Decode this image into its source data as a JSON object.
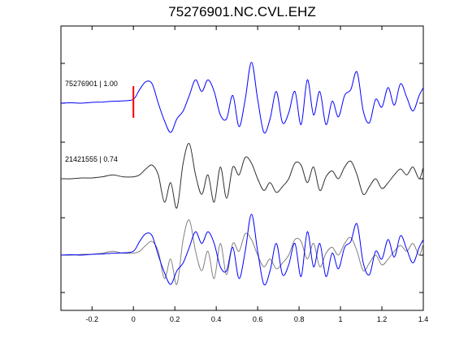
{
  "chart_data": {
    "type": "line",
    "title": "75276901.NC.CVL.EHZ",
    "xlabel": "",
    "ylabel": "",
    "xlim": [
      -0.35,
      1.4
    ],
    "x_ticks": [
      "-0.2",
      "0",
      "0.2",
      "0.4",
      "0.6",
      "0.8",
      "1",
      "1.2",
      "1.4"
    ],
    "x_tick_values": [
      -0.2,
      0,
      0.2,
      0.4,
      0.6,
      0.8,
      1.0,
      1.2,
      1.4
    ],
    "grid": false,
    "colors": {
      "blue": "#0000ff",
      "dark": "#303030",
      "gray": "#808080",
      "pick": "#ff0000"
    },
    "pick_time": 0,
    "traces": [
      {
        "label": "75276901 | 1.00",
        "color": "#0000ff",
        "points": [
          [
            -0.35,
            0.0
          ],
          [
            -0.3,
            0.01
          ],
          [
            -0.25,
            0.0
          ],
          [
            -0.2,
            0.02
          ],
          [
            -0.15,
            0.03
          ],
          [
            -0.1,
            0.05
          ],
          [
            -0.05,
            0.06
          ],
          [
            0.0,
            0.1
          ],
          [
            0.03,
            0.35
          ],
          [
            0.06,
            0.55
          ],
          [
            0.09,
            0.5
          ],
          [
            0.12,
            0.0
          ],
          [
            0.15,
            -0.45
          ],
          [
            0.18,
            -0.75
          ],
          [
            0.21,
            -0.4
          ],
          [
            0.24,
            -0.2
          ],
          [
            0.27,
            0.2
          ],
          [
            0.3,
            0.6
          ],
          [
            0.33,
            0.3
          ],
          [
            0.36,
            0.6
          ],
          [
            0.39,
            0.3
          ],
          [
            0.42,
            -0.3
          ],
          [
            0.45,
            -0.4
          ],
          [
            0.48,
            0.2
          ],
          [
            0.51,
            -0.6
          ],
          [
            0.54,
            0.1
          ],
          [
            0.57,
            1.05
          ],
          [
            0.6,
            0.1
          ],
          [
            0.63,
            -0.75
          ],
          [
            0.66,
            -0.4
          ],
          [
            0.69,
            0.3
          ],
          [
            0.72,
            -0.5
          ],
          [
            0.75,
            -0.25
          ],
          [
            0.78,
            0.3
          ],
          [
            0.81,
            -0.55
          ],
          [
            0.84,
            0.6
          ],
          [
            0.87,
            -0.3
          ],
          [
            0.9,
            0.3
          ],
          [
            0.93,
            -0.55
          ],
          [
            0.96,
            0.05
          ],
          [
            0.99,
            -0.35
          ],
          [
            1.02,
            0.2
          ],
          [
            1.05,
            0.35
          ],
          [
            1.08,
            0.8
          ],
          [
            1.11,
            -0.2
          ],
          [
            1.14,
            -0.5
          ],
          [
            1.17,
            0.1
          ],
          [
            1.2,
            -0.1
          ],
          [
            1.23,
            0.4
          ],
          [
            1.26,
            -0.05
          ],
          [
            1.29,
            0.5
          ],
          [
            1.32,
            0.15
          ],
          [
            1.35,
            -0.2
          ],
          [
            1.38,
            0.2
          ],
          [
            1.4,
            0.4
          ]
        ]
      },
      {
        "label": "21421555 | 0.74",
        "color": "#303030",
        "points": [
          [
            -0.35,
            0.0
          ],
          [
            -0.3,
            0.0
          ],
          [
            -0.25,
            0.02
          ],
          [
            -0.2,
            0.02
          ],
          [
            -0.15,
            0.05
          ],
          [
            -0.1,
            0.1
          ],
          [
            -0.05,
            0.05
          ],
          [
            0.0,
            0.05
          ],
          [
            0.03,
            0.1
          ],
          [
            0.06,
            0.25
          ],
          [
            0.09,
            0.35
          ],
          [
            0.12,
            0.1
          ],
          [
            0.15,
            -0.6
          ],
          [
            0.18,
            -0.1
          ],
          [
            0.21,
            -0.75
          ],
          [
            0.24,
            0.4
          ],
          [
            0.27,
            0.9
          ],
          [
            0.3,
            0.1
          ],
          [
            0.33,
            -0.4
          ],
          [
            0.36,
            0.1
          ],
          [
            0.39,
            -0.6
          ],
          [
            0.42,
            0.3
          ],
          [
            0.45,
            -0.5
          ],
          [
            0.48,
            0.3
          ],
          [
            0.51,
            0.1
          ],
          [
            0.54,
            0.55
          ],
          [
            0.57,
            0.4
          ],
          [
            0.6,
            0.0
          ],
          [
            0.63,
            -0.3
          ],
          [
            0.66,
            -0.1
          ],
          [
            0.69,
            -0.35
          ],
          [
            0.72,
            -0.2
          ],
          [
            0.75,
            0.0
          ],
          [
            0.78,
            0.4
          ],
          [
            0.81,
            0.35
          ],
          [
            0.84,
            -0.1
          ],
          [
            0.87,
            0.3
          ],
          [
            0.9,
            -0.3
          ],
          [
            0.93,
            0.05
          ],
          [
            0.96,
            0.2
          ],
          [
            0.99,
            0.0
          ],
          [
            1.02,
            0.3
          ],
          [
            1.05,
            0.45
          ],
          [
            1.08,
            0.1
          ],
          [
            1.11,
            -0.4
          ],
          [
            1.14,
            -0.2
          ],
          [
            1.17,
            0.0
          ],
          [
            1.2,
            -0.25
          ],
          [
            1.23,
            -0.1
          ],
          [
            1.26,
            0.1
          ],
          [
            1.29,
            0.25
          ],
          [
            1.32,
            0.1
          ],
          [
            1.35,
            0.3
          ],
          [
            1.38,
            0.0
          ],
          [
            1.4,
            0.3
          ]
        ]
      },
      {
        "label": "",
        "color": "#808080",
        "points": [
          [
            -0.35,
            0.0
          ],
          [
            -0.3,
            0.0
          ],
          [
            -0.25,
            0.02
          ],
          [
            -0.2,
            0.02
          ],
          [
            -0.15,
            0.05
          ],
          [
            -0.1,
            0.1
          ],
          [
            -0.05,
            0.05
          ],
          [
            0.0,
            0.05
          ],
          [
            0.03,
            0.1
          ],
          [
            0.06,
            0.25
          ],
          [
            0.09,
            0.35
          ],
          [
            0.12,
            0.1
          ],
          [
            0.15,
            -0.6
          ],
          [
            0.18,
            -0.1
          ],
          [
            0.21,
            -0.75
          ],
          [
            0.24,
            0.4
          ],
          [
            0.27,
            0.9
          ],
          [
            0.3,
            0.1
          ],
          [
            0.33,
            -0.4
          ],
          [
            0.36,
            0.1
          ],
          [
            0.39,
            -0.6
          ],
          [
            0.42,
            0.3
          ],
          [
            0.45,
            -0.5
          ],
          [
            0.48,
            0.3
          ],
          [
            0.51,
            0.1
          ],
          [
            0.54,
            0.55
          ],
          [
            0.57,
            0.4
          ],
          [
            0.6,
            0.0
          ],
          [
            0.63,
            -0.3
          ],
          [
            0.66,
            -0.1
          ],
          [
            0.69,
            -0.35
          ],
          [
            0.72,
            -0.2
          ],
          [
            0.75,
            0.0
          ],
          [
            0.78,
            0.4
          ],
          [
            0.81,
            0.35
          ],
          [
            0.84,
            -0.1
          ],
          [
            0.87,
            0.3
          ],
          [
            0.9,
            -0.3
          ],
          [
            0.93,
            0.05
          ],
          [
            0.96,
            0.2
          ],
          [
            0.99,
            0.0
          ],
          [
            1.02,
            0.3
          ],
          [
            1.05,
            0.45
          ],
          [
            1.08,
            0.1
          ],
          [
            1.11,
            -0.4
          ],
          [
            1.14,
            -0.2
          ],
          [
            1.17,
            0.0
          ],
          [
            1.2,
            -0.25
          ],
          [
            1.23,
            -0.1
          ],
          [
            1.26,
            0.1
          ],
          [
            1.29,
            0.25
          ],
          [
            1.32,
            0.1
          ],
          [
            1.35,
            0.3
          ],
          [
            1.38,
            0.0
          ],
          [
            1.4,
            0.3
          ]
        ]
      },
      {
        "label": "",
        "color": "#0000ff",
        "points": [
          [
            -0.35,
            0.0
          ],
          [
            -0.3,
            0.01
          ],
          [
            -0.25,
            0.0
          ],
          [
            -0.2,
            0.02
          ],
          [
            -0.15,
            0.03
          ],
          [
            -0.1,
            0.05
          ],
          [
            -0.05,
            0.06
          ],
          [
            0.0,
            0.1
          ],
          [
            0.03,
            0.35
          ],
          [
            0.06,
            0.55
          ],
          [
            0.09,
            0.5
          ],
          [
            0.12,
            0.0
          ],
          [
            0.15,
            -0.45
          ],
          [
            0.18,
            -0.75
          ],
          [
            0.21,
            -0.4
          ],
          [
            0.24,
            -0.2
          ],
          [
            0.27,
            0.2
          ],
          [
            0.3,
            0.6
          ],
          [
            0.33,
            0.3
          ],
          [
            0.36,
            0.6
          ],
          [
            0.39,
            0.3
          ],
          [
            0.42,
            -0.3
          ],
          [
            0.45,
            -0.4
          ],
          [
            0.48,
            0.2
          ],
          [
            0.51,
            -0.6
          ],
          [
            0.54,
            0.1
          ],
          [
            0.57,
            1.05
          ],
          [
            0.6,
            0.1
          ],
          [
            0.63,
            -0.75
          ],
          [
            0.66,
            -0.4
          ],
          [
            0.69,
            0.3
          ],
          [
            0.72,
            -0.5
          ],
          [
            0.75,
            -0.25
          ],
          [
            0.78,
            0.3
          ],
          [
            0.81,
            -0.55
          ],
          [
            0.84,
            0.6
          ],
          [
            0.87,
            -0.3
          ],
          [
            0.9,
            0.3
          ],
          [
            0.93,
            -0.55
          ],
          [
            0.96,
            0.05
          ],
          [
            0.99,
            -0.35
          ],
          [
            1.02,
            0.2
          ],
          [
            1.05,
            0.35
          ],
          [
            1.08,
            0.8
          ],
          [
            1.11,
            -0.2
          ],
          [
            1.14,
            -0.5
          ],
          [
            1.17,
            0.1
          ],
          [
            1.2,
            -0.1
          ],
          [
            1.23,
            0.4
          ],
          [
            1.26,
            -0.05
          ],
          [
            1.29,
            0.5
          ],
          [
            1.32,
            0.15
          ],
          [
            1.35,
            -0.2
          ],
          [
            1.38,
            0.2
          ],
          [
            1.4,
            0.4
          ]
        ]
      }
    ]
  }
}
